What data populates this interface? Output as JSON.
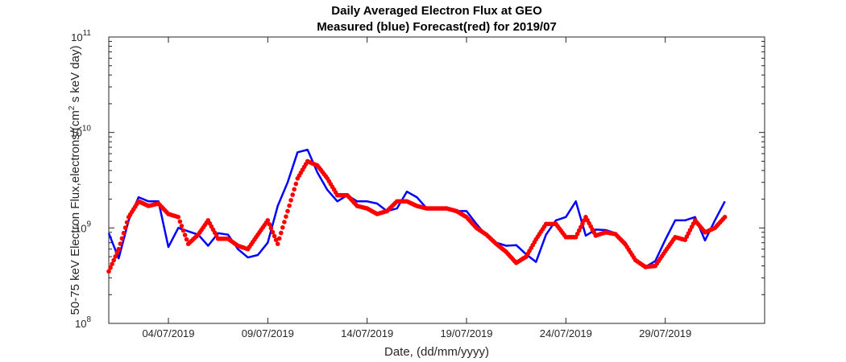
{
  "chart_data": {
    "type": "line",
    "title_line1": "Daily Averaged Electron Flux at GEO",
    "title_line2": "Measured (blue) Forecast(red) for 2019/07",
    "xlabel": "Date, (dd/mm/yyyy)",
    "ylabel_prefix": "50-75 keV Electron Flux,electrons/(cm",
    "ylabel_sup": "2",
    "ylabel_suffix": " s keV day)",
    "y_scale": "log",
    "ylim": [
      100000000.0,
      100000000000.0
    ],
    "xlim": [
      "2019-07-01",
      "2019-08-03"
    ],
    "y_ticks": [
      {
        "base": "10",
        "exp": "8",
        "value": 100000000.0
      },
      {
        "base": "10",
        "exp": "9",
        "value": 1000000000.0
      },
      {
        "base": "10",
        "exp": "10",
        "value": 10000000000.0
      },
      {
        "base": "10",
        "exp": "11",
        "value": 100000000000.0
      }
    ],
    "x_ticks": [
      {
        "date": "2019-07-04",
        "label": "04/07/2019"
      },
      {
        "date": "2019-07-09",
        "label": "09/07/2019"
      },
      {
        "date": "2019-07-14",
        "label": "14/07/2019"
      },
      {
        "date": "2019-07-19",
        "label": "19/07/2019"
      },
      {
        "date": "2019-07-24",
        "label": "24/07/2019"
      },
      {
        "date": "2019-07-29",
        "label": "29/07/2019"
      }
    ],
    "grid": false,
    "series": [
      {
        "color": "#0000ff",
        "style": "line",
        "x": [
          "2019-07-01",
          "2019-07-01T12:00",
          "2019-07-02",
          "2019-07-02T12:00",
          "2019-07-03",
          "2019-07-03T12:00",
          "2019-07-04",
          "2019-07-04T12:00",
          "2019-07-05",
          "2019-07-05T12:00",
          "2019-07-06",
          "2019-07-06T12:00",
          "2019-07-07",
          "2019-07-07T12:00",
          "2019-07-08",
          "2019-07-08T12:00",
          "2019-07-09",
          "2019-07-09T12:00",
          "2019-07-10",
          "2019-07-10T12:00",
          "2019-07-11",
          "2019-07-11T12:00",
          "2019-07-12",
          "2019-07-12T12:00",
          "2019-07-13",
          "2019-07-13T12:00",
          "2019-07-14",
          "2019-07-14T12:00",
          "2019-07-15",
          "2019-07-15T12:00",
          "2019-07-16",
          "2019-07-16T12:00",
          "2019-07-17",
          "2019-07-17T12:00",
          "2019-07-18",
          "2019-07-18T12:00",
          "2019-07-19",
          "2019-07-19T12:00",
          "2019-07-20",
          "2019-07-20T12:00",
          "2019-07-21",
          "2019-07-21T12:00",
          "2019-07-22",
          "2019-07-22T12:00",
          "2019-07-23",
          "2019-07-23T12:00",
          "2019-07-24",
          "2019-07-24T12:00",
          "2019-07-25",
          "2019-07-25T12:00",
          "2019-07-26",
          "2019-07-26T12:00",
          "2019-07-27",
          "2019-07-27T12:00",
          "2019-07-28",
          "2019-07-28T12:00",
          "2019-07-29",
          "2019-07-29T12:00",
          "2019-07-30",
          "2019-07-30T12:00",
          "2019-07-31",
          "2019-07-31T12:00",
          "2019-08-01"
        ],
        "y": [
          880000000.0,
          480000000.0,
          1200000000.0,
          2100000000.0,
          1900000000.0,
          1900000000.0,
          630000000.0,
          1000000000.0,
          920000000.0,
          850000000.0,
          650000000.0,
          880000000.0,
          850000000.0,
          600000000.0,
          490000000.0,
          520000000.0,
          700000000.0,
          1700000000.0,
          3000000000.0,
          6200000000.0,
          6600000000.0,
          3800000000.0,
          2500000000.0,
          1900000000.0,
          2200000000.0,
          1900000000.0,
          1900000000.0,
          1800000000.0,
          1500000000.0,
          1600000000.0,
          2400000000.0,
          2100000000.0,
          1600000000.0,
          1600000000.0,
          1600000000.0,
          1500000000.0,
          1500000000.0,
          1100000000.0,
          830000000.0,
          700000000.0,
          650000000.0,
          660000000.0,
          530000000.0,
          440000000.0,
          850000000.0,
          1200000000.0,
          1300000000.0,
          1900000000.0,
          830000000.0,
          960000000.0,
          950000000.0,
          880000000.0,
          700000000.0,
          450000000.0,
          390000000.0,
          450000000.0,
          750000000.0,
          1200000000.0,
          1200000000.0,
          1300000000.0,
          740000000.0,
          1200000000.0,
          1900000000.0
        ]
      },
      {
        "color": "#ff0000",
        "style": "markers",
        "x": [
          "2019-07-01",
          "2019-07-01T12:00",
          "2019-07-02",
          "2019-07-02T12:00",
          "2019-07-03",
          "2019-07-03T12:00",
          "2019-07-04",
          "2019-07-04T12:00",
          "2019-07-05",
          "2019-07-05T12:00",
          "2019-07-06",
          "2019-07-06T12:00",
          "2019-07-07",
          "2019-07-07T12:00",
          "2019-07-08",
          "2019-07-08T12:00",
          "2019-07-09",
          "2019-07-09T12:00",
          "2019-07-10",
          "2019-07-10T12:00",
          "2019-07-11",
          "2019-07-11T12:00",
          "2019-07-12",
          "2019-07-12T12:00",
          "2019-07-13",
          "2019-07-13T12:00",
          "2019-07-14",
          "2019-07-14T12:00",
          "2019-07-15",
          "2019-07-15T12:00",
          "2019-07-16",
          "2019-07-16T12:00",
          "2019-07-17",
          "2019-07-17T12:00",
          "2019-07-18",
          "2019-07-18T12:00",
          "2019-07-19",
          "2019-07-19T12:00",
          "2019-07-20",
          "2019-07-20T12:00",
          "2019-07-21",
          "2019-07-21T12:00",
          "2019-07-22",
          "2019-07-22T12:00",
          "2019-07-23",
          "2019-07-23T12:00",
          "2019-07-24",
          "2019-07-24T12:00",
          "2019-07-25",
          "2019-07-25T12:00",
          "2019-07-26",
          "2019-07-26T12:00",
          "2019-07-27",
          "2019-07-27T12:00",
          "2019-07-28",
          "2019-07-28T12:00",
          "2019-07-29",
          "2019-07-29T12:00",
          "2019-07-30",
          "2019-07-30T12:00",
          "2019-07-31",
          "2019-07-31T12:00",
          "2019-08-01"
        ],
        "y": [
          350000000.0,
          600000000.0,
          1300000000.0,
          1900000000.0,
          1700000000.0,
          1800000000.0,
          1400000000.0,
          1300000000.0,
          680000000.0,
          850000000.0,
          1200000000.0,
          770000000.0,
          770000000.0,
          650000000.0,
          600000000.0,
          850000000.0,
          1200000000.0,
          680000000.0,
          1500000000.0,
          3300000000.0,
          5000000000.0,
          4500000000.0,
          3300000000.0,
          2200000000.0,
          2200000000.0,
          1700000000.0,
          1600000000.0,
          1400000000.0,
          1500000000.0,
          1900000000.0,
          1900000000.0,
          1700000000.0,
          1600000000.0,
          1600000000.0,
          1600000000.0,
          1500000000.0,
          1300000000.0,
          1000000000.0,
          850000000.0,
          680000000.0,
          560000000.0,
          430000000.0,
          500000000.0,
          760000000.0,
          1100000000.0,
          1100000000.0,
          800000000.0,
          800000000.0,
          1300000000.0,
          830000000.0,
          900000000.0,
          860000000.0,
          670000000.0,
          460000000.0,
          390000000.0,
          400000000.0,
          570000000.0,
          800000000.0,
          750000000.0,
          1200000000.0,
          900000000.0,
          1000000000.0,
          1300000000.0
        ]
      }
    ]
  }
}
